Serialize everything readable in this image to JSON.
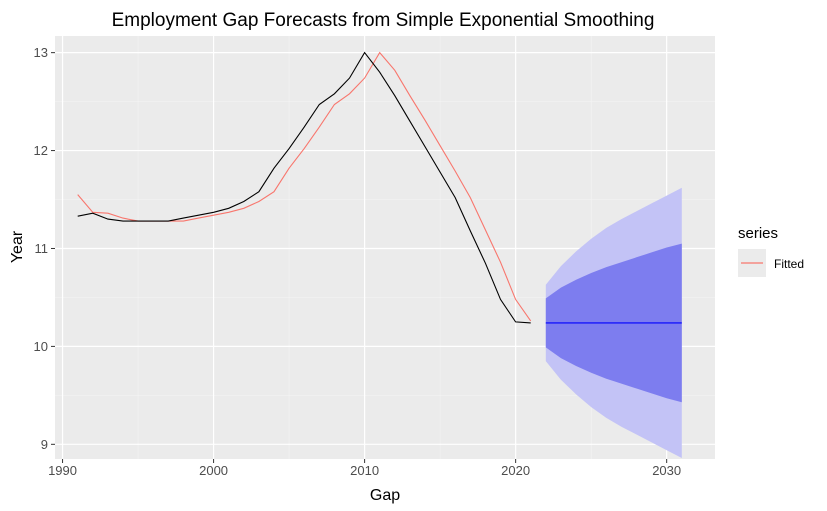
{
  "chart_data": {
    "type": "line",
    "title": "Employment Gap Forecasts from Simple Exponential Smoothing",
    "xlabel": "Gap",
    "ylabel": "Year",
    "xlim": [
      1989.5,
      2033.2
    ],
    "ylim": [
      8.85,
      13.17
    ],
    "x_ticks": [
      1990,
      2000,
      2010,
      2020,
      2030
    ],
    "y_ticks": [
      9,
      10,
      11,
      12,
      13
    ],
    "grid": true,
    "legend": {
      "title": "series",
      "position": "right",
      "items": [
        {
          "label": "Fitted",
          "color": "#f8766d"
        }
      ]
    },
    "series": [
      {
        "name": "",
        "color": "#000000",
        "x": [
          1991,
          1992,
          1993,
          1994,
          1995,
          1996,
          1997,
          1998,
          1999,
          2000,
          2001,
          2002,
          2003,
          2004,
          2005,
          2006,
          2007,
          2008,
          2009,
          2010,
          2011,
          2012,
          2013,
          2014,
          2015,
          2016,
          2017,
          2018,
          2019,
          2020,
          2021
        ],
        "y": [
          11.33,
          11.36,
          11.3,
          11.28,
          11.28,
          11.28,
          11.28,
          11.31,
          11.34,
          11.37,
          11.41,
          11.48,
          11.58,
          11.82,
          12.02,
          12.24,
          12.47,
          12.58,
          12.74,
          13.0,
          12.8,
          12.56,
          12.3,
          12.04,
          11.78,
          11.52,
          11.18,
          10.85,
          10.48,
          10.25,
          10.24
        ]
      },
      {
        "name": "Fitted",
        "color": "#f8766d",
        "x": [
          1991,
          1992,
          1993,
          1994,
          1995,
          1996,
          1997,
          1998,
          1999,
          2000,
          2001,
          2002,
          2003,
          2004,
          2005,
          2006,
          2007,
          2008,
          2009,
          2010,
          2011,
          2012,
          2013,
          2014,
          2015,
          2016,
          2017,
          2018,
          2019,
          2020,
          2021
        ],
        "y": [
          11.55,
          11.37,
          11.36,
          11.31,
          11.28,
          11.28,
          11.28,
          11.28,
          11.31,
          11.34,
          11.37,
          11.41,
          11.48,
          11.58,
          11.82,
          12.02,
          12.24,
          12.47,
          12.58,
          12.74,
          13.0,
          12.82,
          12.56,
          12.31,
          12.05,
          11.79,
          11.52,
          11.19,
          10.86,
          10.48,
          10.26
        ]
      }
    ],
    "forecast": {
      "color": "#0000ff",
      "band80_color": "#7d7def",
      "band95_color": "#c3c3f6",
      "x": [
        2022,
        2023,
        2024,
        2025,
        2026,
        2027,
        2028,
        2029,
        2030,
        2031
      ],
      "mean": [
        10.24,
        10.24,
        10.24,
        10.24,
        10.24,
        10.24,
        10.24,
        10.24,
        10.24,
        10.24
      ],
      "lo80": [
        9.99,
        9.88,
        9.8,
        9.73,
        9.67,
        9.62,
        9.57,
        9.52,
        9.47,
        9.43
      ],
      "hi80": [
        10.49,
        10.6,
        10.68,
        10.75,
        10.81,
        10.86,
        10.91,
        10.96,
        11.01,
        11.05
      ],
      "lo95": [
        9.85,
        9.66,
        9.51,
        9.38,
        9.27,
        9.18,
        9.1,
        9.02,
        8.94,
        8.86
      ],
      "hi95": [
        10.63,
        10.82,
        10.97,
        11.1,
        11.21,
        11.3,
        11.38,
        11.46,
        11.54,
        11.62
      ]
    }
  }
}
